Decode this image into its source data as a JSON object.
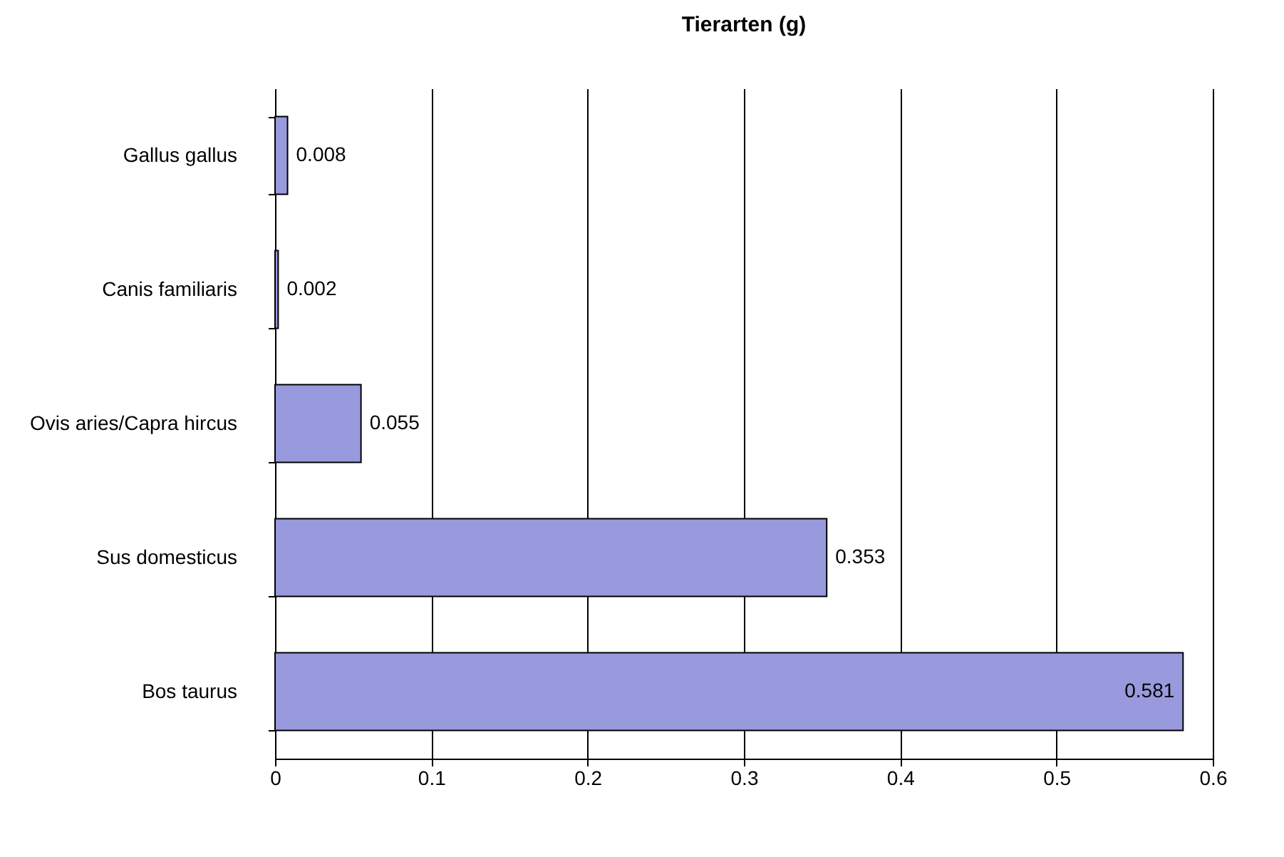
{
  "chart_data": {
    "type": "bar",
    "orientation": "horizontal",
    "title": "Tierarten (g)",
    "categories": [
      "Gallus gallus",
      "Canis familiaris",
      "Ovis aries/Capra hircus",
      "Sus domesticus",
      "Bos taurus"
    ],
    "values": [
      0.008,
      0.002,
      0.055,
      0.353,
      0.581
    ],
    "color": "#9999dd",
    "xlim": [
      0,
      0.6
    ],
    "xticks": [
      0,
      0.1,
      0.2,
      0.3,
      0.4,
      0.5,
      0.6
    ],
    "grid": "x",
    "data_labels": true
  }
}
